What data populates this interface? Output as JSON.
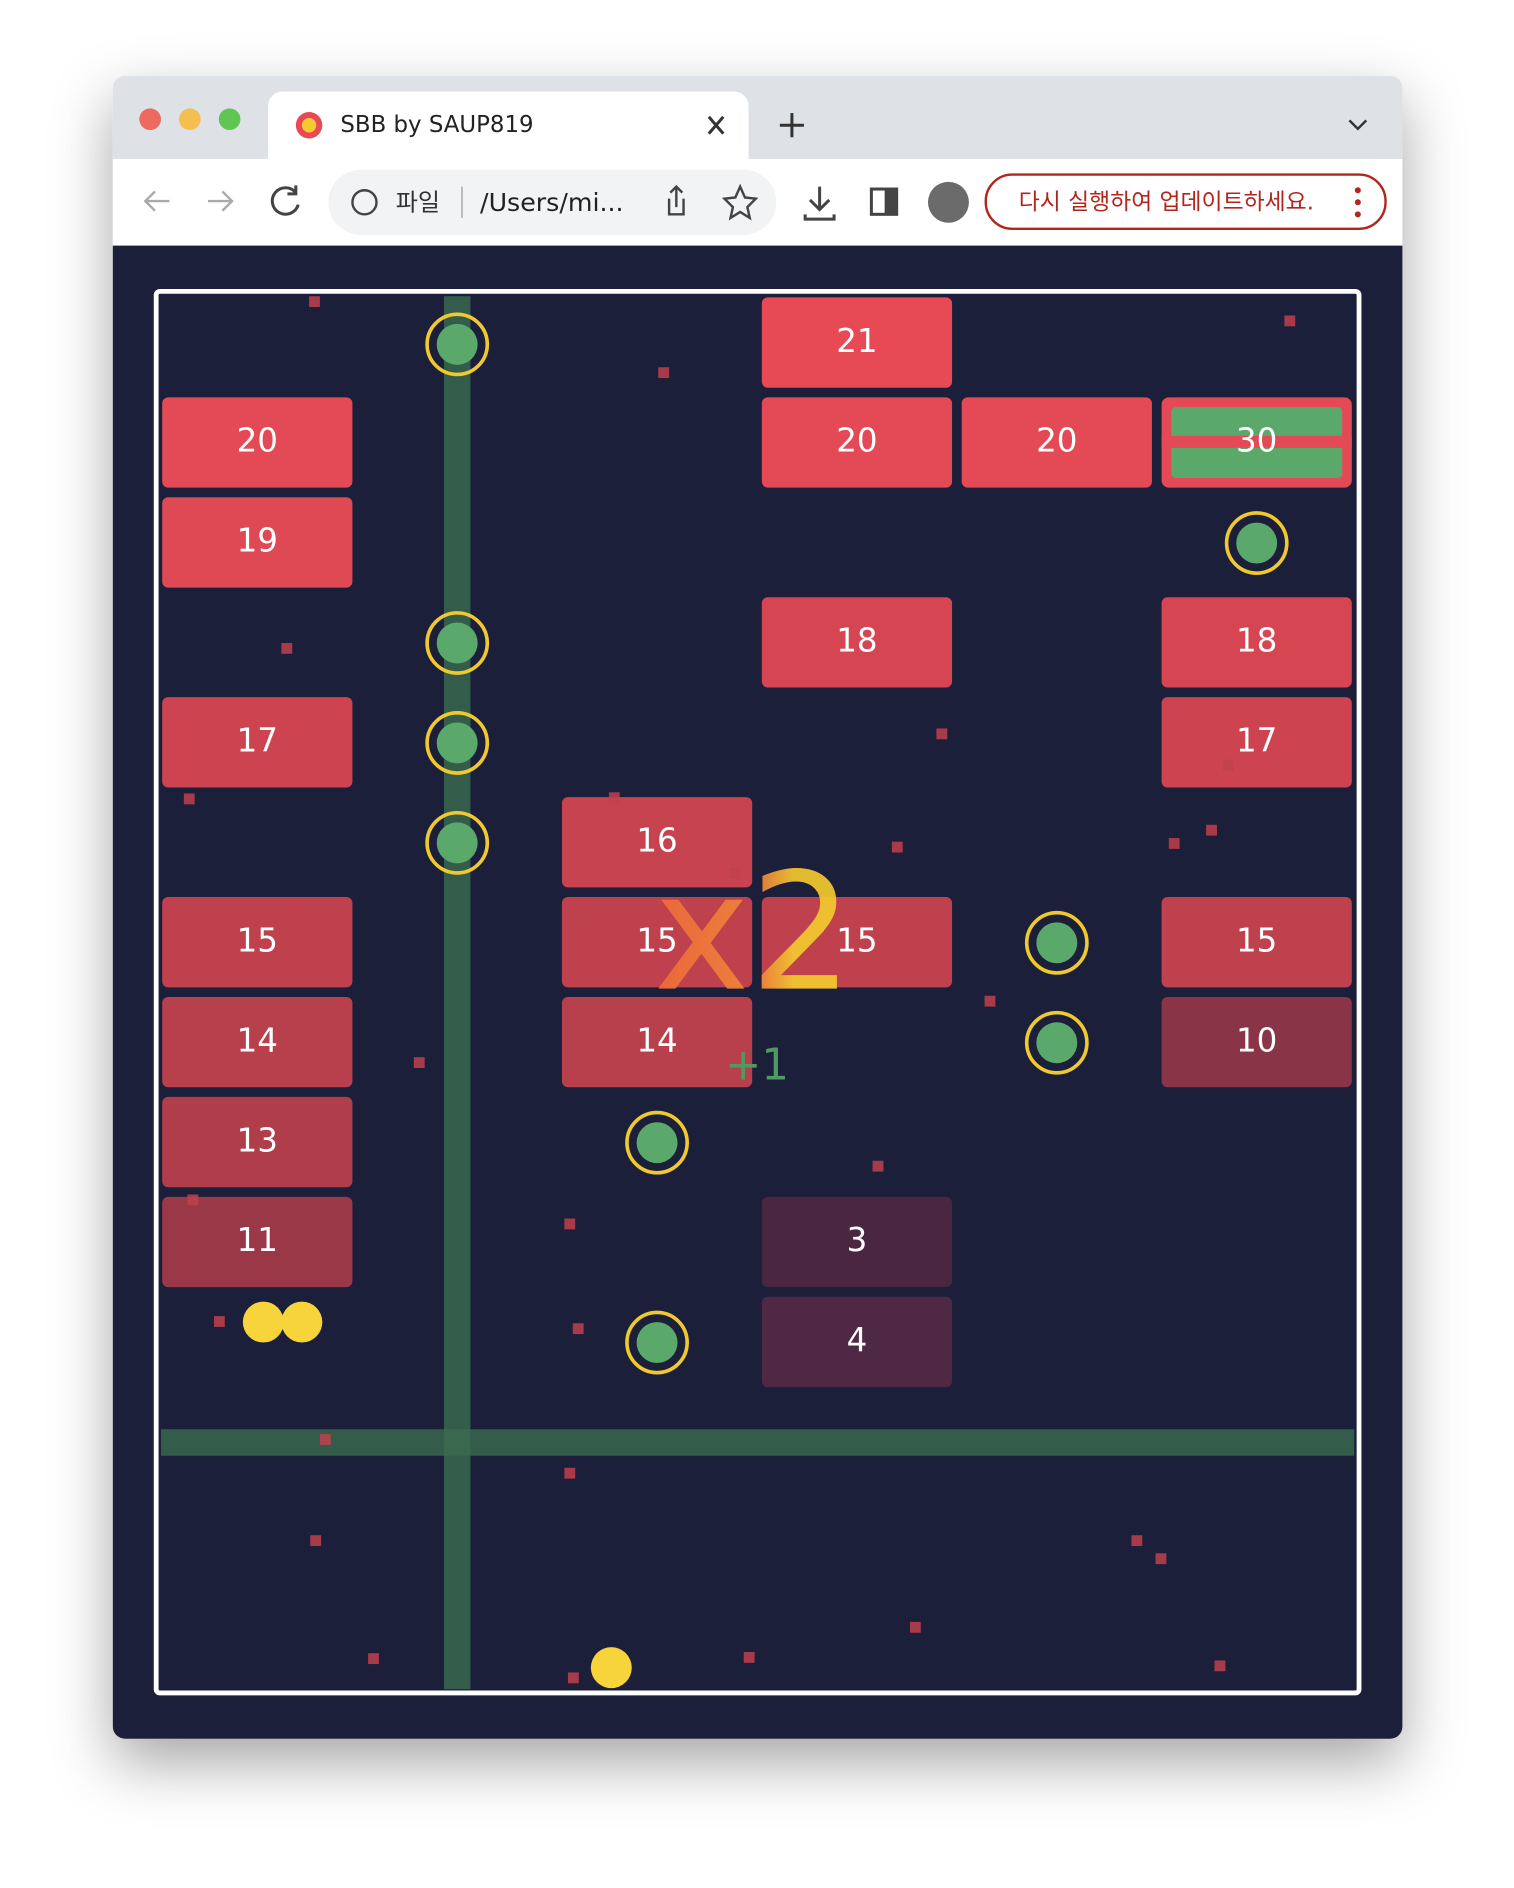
{
  "browser": {
    "tab_title": "SBB by SAUP819",
    "address_label": "파일",
    "url": "/Users/mi...",
    "update_button": "다시 실행하여 업데이트하세요."
  },
  "game": {
    "blocks": [
      "21",
      "20",
      "20",
      "20",
      "30",
      "19",
      "18",
      "18",
      "17",
      "17",
      "16",
      "15",
      "15",
      "15",
      "15",
      "14",
      "14",
      "10",
      "13",
      "11",
      "3",
      "4"
    ],
    "multiplier": "x2",
    "bonus": "+1"
  }
}
